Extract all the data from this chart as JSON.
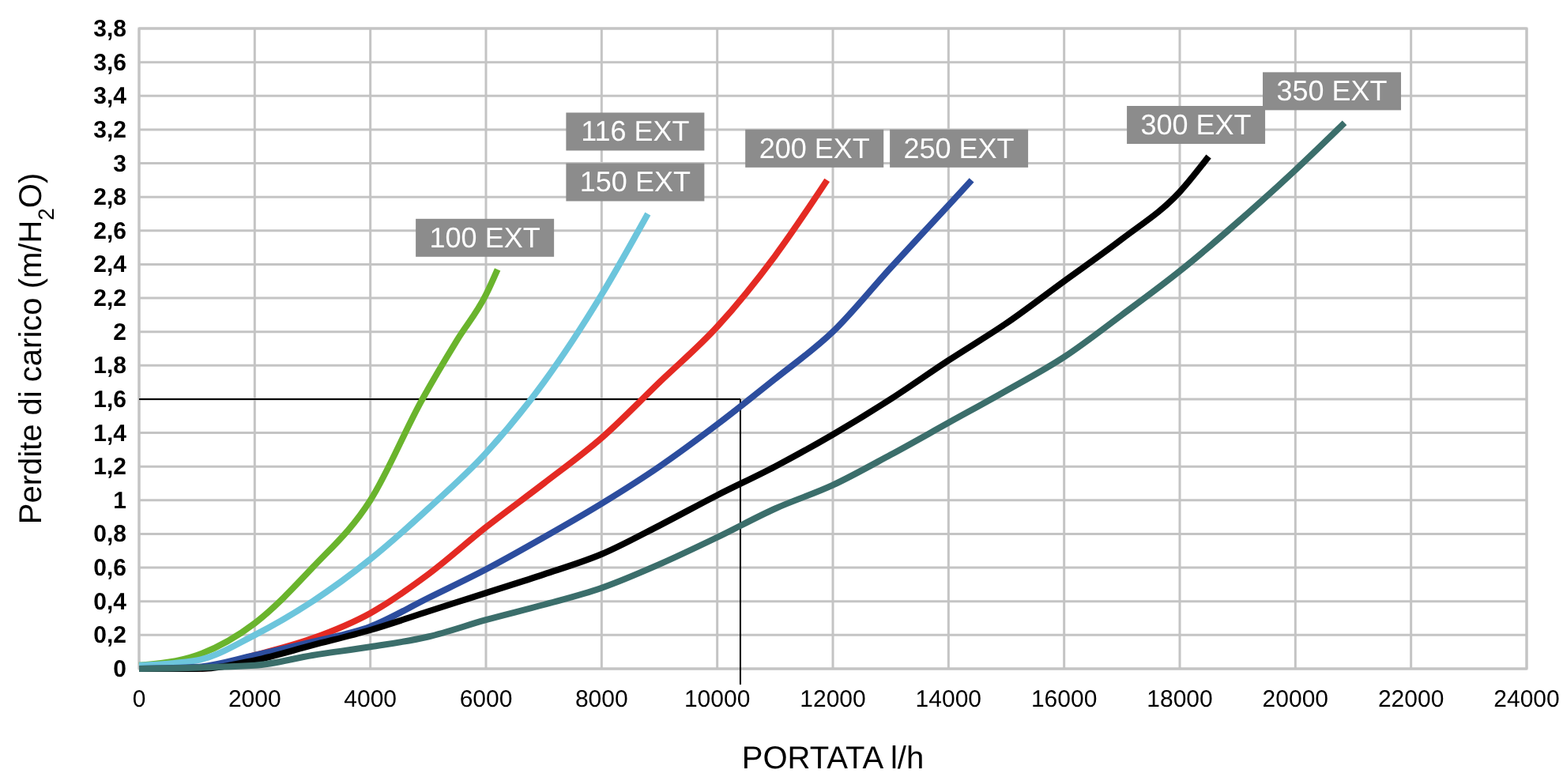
{
  "chart_data": {
    "type": "line",
    "xlabel": "PORTATA l/h",
    "ylabel": "Perdite di carico (m/H$_{2}$O)",
    "xlim": [
      0,
      24000
    ],
    "xticks": [
      0,
      2000,
      4000,
      6000,
      8000,
      10000,
      12000,
      14000,
      16000,
      18000,
      20000,
      22000,
      24000
    ],
    "ylim": [
      0,
      3.8
    ],
    "yticks": [
      0,
      {
        "value": 0.2,
        "label": "0,2"
      },
      {
        "value": 0.4,
        "label": "0,4"
      },
      {
        "value": 0.6,
        "label": "0,6"
      },
      {
        "value": 0.8,
        "label": "0,8"
      },
      1,
      {
        "value": 1.2,
        "label": "1,2"
      },
      {
        "value": 1.4,
        "label": "1,4"
      },
      {
        "value": 1.6,
        "label": "1,6"
      },
      {
        "value": 1.8,
        "label": "1,8"
      },
      2,
      {
        "value": 2.2,
        "label": "2,2"
      },
      {
        "value": 2.4,
        "label": "2,4"
      },
      {
        "value": 2.6,
        "label": "2,6"
      },
      {
        "value": 2.8,
        "label": "2,8"
      },
      3,
      {
        "value": 3.2,
        "label": "3,2"
      },
      {
        "value": 3.4,
        "label": "3,4"
      },
      {
        "value": 3.6,
        "label": "3,6"
      },
      {
        "value": 3.8,
        "label": "3,8"
      }
    ],
    "grid": true,
    "legend": false,
    "marker": "none",
    "line_style": "solid",
    "ref_lines": [
      {
        "axis": "y",
        "value": 1.6,
        "color": "#000000"
      },
      {
        "axis": "x",
        "value": 10400,
        "color": "#000000"
      }
    ],
    "annotations": [
      "116 EXT"
    ],
    "series": [
      {
        "name": "100 EXT",
        "color": "#6ab42d",
        "x": [
          0,
          1000,
          2000,
          3000,
          4000,
          4900,
          5500,
          6000,
          6200
        ],
        "values": [
          0.02,
          0.08,
          0.27,
          0.6,
          1.0,
          1.6,
          1.95,
          2.22,
          2.37
        ]
      },
      {
        "name": "150 EXT",
        "color": "#6cc5dc",
        "x": [
          0,
          1000,
          2000,
          3000,
          4000,
          5000,
          6000,
          7000,
          8000,
          8800
        ],
        "values": [
          0.02,
          0.05,
          0.2,
          0.4,
          0.65,
          0.95,
          1.28,
          1.7,
          2.22,
          2.7
        ]
      },
      {
        "name": "200 EXT",
        "color": "#e42a23",
        "x": [
          0,
          1000,
          2000,
          3000,
          4000,
          5000,
          6000,
          7000,
          8000,
          9000,
          10000,
          11000,
          11900
        ],
        "values": [
          0.0,
          0.0,
          0.08,
          0.18,
          0.33,
          0.56,
          0.84,
          1.1,
          1.37,
          1.7,
          2.03,
          2.45,
          2.9
        ]
      },
      {
        "name": "250 EXT",
        "color": "#2c4d9e",
        "x": [
          0,
          1000,
          2000,
          3000,
          4000,
          5000,
          6000,
          7000,
          8000,
          9000,
          10000,
          11000,
          12000,
          13000,
          14000,
          14400
        ],
        "values": [
          0.0,
          0.01,
          0.08,
          0.16,
          0.25,
          0.42,
          0.59,
          0.78,
          0.98,
          1.2,
          1.45,
          1.72,
          2.0,
          2.38,
          2.75,
          2.9
        ]
      },
      {
        "name": "300 EXT",
        "color": "#000000",
        "x": [
          0,
          1000,
          2000,
          3000,
          4000,
          5000,
          6000,
          7000,
          8000,
          9000,
          10000,
          11000,
          12000,
          13000,
          14000,
          15000,
          16000,
          17000,
          18000,
          18500
        ],
        "values": [
          0.0,
          0.0,
          0.05,
          0.14,
          0.23,
          0.34,
          0.45,
          0.56,
          0.68,
          0.85,
          1.03,
          1.2,
          1.39,
          1.6,
          1.83,
          2.05,
          2.3,
          2.55,
          2.83,
          3.04
        ]
      },
      {
        "name": "350 EXT",
        "color": "#3b6e6b",
        "x": [
          0,
          2000,
          3000,
          4000,
          5000,
          6000,
          7000,
          8000,
          9000,
          10000,
          11000,
          12000,
          13000,
          14000,
          15000,
          16000,
          17000,
          18000,
          19000,
          20000,
          20850
        ],
        "values": [
          0.0,
          0.02,
          0.08,
          0.13,
          0.19,
          0.29,
          0.38,
          0.48,
          0.62,
          0.78,
          0.95,
          1.09,
          1.27,
          1.46,
          1.65,
          1.85,
          2.1,
          2.36,
          2.65,
          2.96,
          3.24
        ]
      }
    ]
  }
}
